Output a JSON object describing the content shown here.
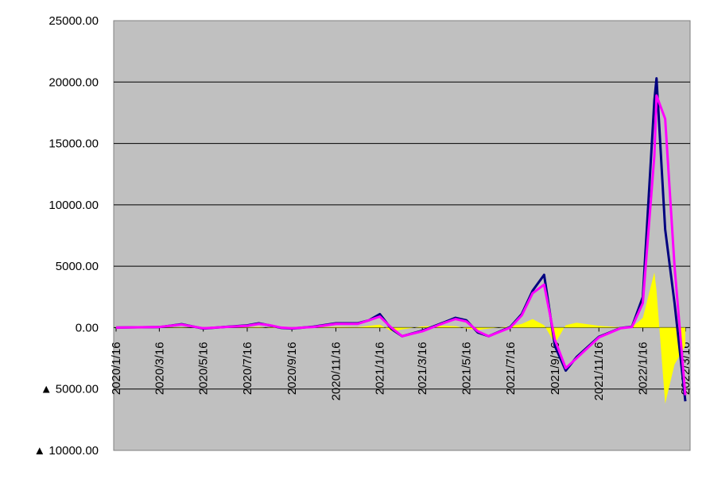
{
  "chart_data": {
    "type": "line",
    "ylim": [
      -10000,
      25000
    ],
    "yticks": [
      {
        "value": -10000,
        "label": "▲ 10000.00"
      },
      {
        "value": -5000,
        "label": "▲ 5000.00"
      },
      {
        "value": 0,
        "label": "0.00"
      },
      {
        "value": 5000,
        "label": "5000.00"
      },
      {
        "value": 10000,
        "label": "10000.00"
      },
      {
        "value": 15000,
        "label": "15000.00"
      },
      {
        "value": 20000,
        "label": "20000.00"
      },
      {
        "value": 25000,
        "label": "25000.00"
      }
    ],
    "xlim": [
      "2020/1/16",
      "2022/3/16"
    ],
    "xticks": [
      "2020/1/16",
      "2020/3/16",
      "2020/5/16",
      "2020/7/16",
      "2020/9/16",
      "2020/11/16",
      "2021/1/16",
      "2021/3/16",
      "2021/5/16",
      "2021/7/16",
      "2021/9/16",
      "2021/11/16",
      "2022/1/16",
      "2022/3/16"
    ],
    "grid": true,
    "x": [
      "2020/1/16",
      "2020/3/16",
      "2020/4/16",
      "2020/5/16",
      "2020/6/16",
      "2020/7/16",
      "2020/8/1",
      "2020/8/16",
      "2020/9/1",
      "2020/9/16",
      "2020/10/16",
      "2020/11/16",
      "2020/12/16",
      "2021/1/1",
      "2021/1/16",
      "2021/2/1",
      "2021/2/16",
      "2021/3/16",
      "2021/4/16",
      "2021/5/1",
      "2021/5/16",
      "2021/6/1",
      "2021/6/16",
      "2021/7/16",
      "2021/8/1",
      "2021/8/16",
      "2021/9/1",
      "2021/9/16",
      "2021/10/1",
      "2021/10/16",
      "2021/11/16",
      "2021/12/16",
      "2022/1/1",
      "2022/1/16",
      "2022/2/1",
      "2022/2/4",
      "2022/2/16",
      "2022/3/1",
      "2022/3/16"
    ],
    "series": [
      {
        "color": "#ffff00",
        "style": "area",
        "values": [
          0,
          10,
          30,
          -20,
          10,
          30,
          60,
          -30,
          -50,
          -10,
          20,
          60,
          40,
          150,
          250,
          -300,
          -150,
          100,
          150,
          120,
          -80,
          -200,
          -80,
          100,
          300,
          700,
          200,
          -1300,
          200,
          400,
          150,
          20,
          30,
          800,
          4500,
          3000,
          -6200,
          -3000,
          -1500
        ]
      },
      {
        "color": "#000080",
        "style": "line",
        "values": [
          0,
          40,
          280,
          -80,
          60,
          180,
          350,
          180,
          -20,
          -80,
          80,
          350,
          350,
          600,
          1100,
          -100,
          -700,
          -250,
          450,
          800,
          600,
          -400,
          -700,
          50,
          1100,
          3000,
          4300,
          -1500,
          -3500,
          -2400,
          -750,
          -40,
          80,
          2500,
          18500,
          20300,
          8000,
          2000,
          -6000
        ]
      },
      {
        "color": "#ff00ff",
        "style": "line",
        "values": [
          0,
          50,
          250,
          -50,
          50,
          150,
          300,
          200,
          0,
          -50,
          50,
          300,
          300,
          600,
          900,
          0,
          -700,
          -300,
          400,
          700,
          500,
          -300,
          -700,
          0,
          1000,
          2800,
          3500,
          -1000,
          -3300,
          -2500,
          -800,
          -50,
          50,
          2000,
          14000,
          18900,
          17000,
          5000,
          -5500
        ]
      }
    ]
  }
}
